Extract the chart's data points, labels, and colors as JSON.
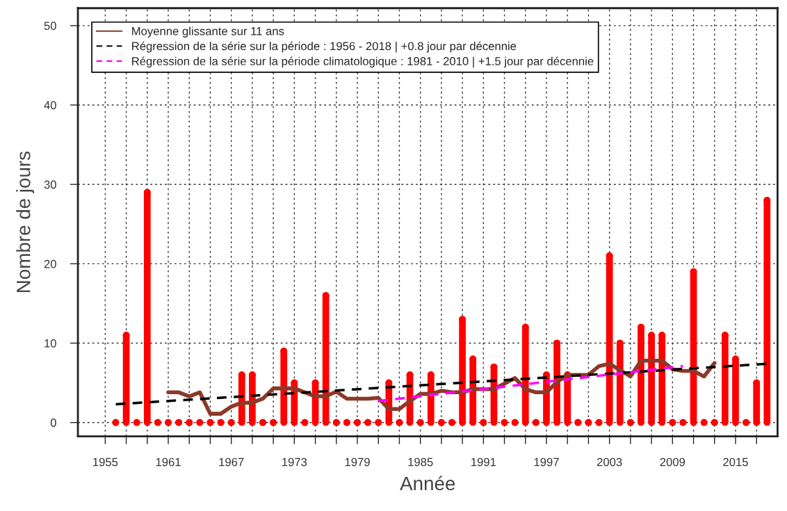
{
  "chart_data": {
    "type": "lollipop",
    "xlabel": "Année",
    "ylabel": "Nombre de jours",
    "xlim": [
      1952.4,
      2019.0
    ],
    "ylim": [
      -1.75,
      52.2
    ],
    "xticks": [
      1955,
      {
        "value": 1957,
        "label": null
      },
      {
        "value": 1959,
        "label": null
      },
      1961,
      {
        "value": 1963,
        "label": null
      },
      {
        "value": 1965,
        "label": null
      },
      1967,
      {
        "value": 1969,
        "label": null
      },
      {
        "value": 1971,
        "label": null
      },
      1973,
      {
        "value": 1975,
        "label": null
      },
      {
        "value": 1977,
        "label": null
      },
      1979,
      {
        "value": 1981,
        "label": null
      },
      {
        "value": 1983,
        "label": null
      },
      1985,
      {
        "value": 1987,
        "label": null
      },
      {
        "value": 1989,
        "label": null
      },
      1991,
      {
        "value": 1993,
        "label": null
      },
      {
        "value": 1995,
        "label": null
      },
      1997,
      {
        "value": 1999,
        "label": null
      },
      {
        "value": 2001,
        "label": null
      },
      2003,
      {
        "value": 2005,
        "label": null
      },
      {
        "value": 2007,
        "label": null
      },
      2009,
      {
        "value": 2011,
        "label": null
      },
      {
        "value": 2013,
        "label": null
      },
      2015,
      {
        "value": 2017,
        "label": null
      }
    ],
    "yticks": [
      0,
      10,
      20,
      30,
      40,
      50
    ],
    "grid": true,
    "legend": "top left",
    "series": [
      {
        "color": "#ff0000",
        "marker": "circle",
        "x": [
          1956,
          1957,
          1958,
          1959,
          1960,
          1961,
          1962,
          1963,
          1964,
          1965,
          1966,
          1967,
          1968,
          1969,
          1970,
          1971,
          1972,
          1973,
          1974,
          1975,
          1976,
          1977,
          1978,
          1979,
          1980,
          1981,
          1982,
          1983,
          1984,
          1985,
          1986,
          1987,
          1988,
          1989,
          1990,
          1991,
          1992,
          1993,
          1994,
          1995,
          1996,
          1997,
          1998,
          1999,
          2000,
          2001,
          2002,
          2003,
          2004,
          2005,
          2006,
          2007,
          2008,
          2009,
          2010,
          2011,
          2012,
          2013,
          2014,
          2015,
          2016,
          2017,
          2018
        ],
        "values": [
          0,
          11,
          0,
          29,
          0,
          0,
          0,
          0,
          0,
          0,
          0,
          0,
          6,
          6,
          0,
          0,
          9,
          5,
          0,
          5,
          16,
          0,
          0,
          0,
          0,
          0,
          5,
          0,
          6,
          0,
          6,
          0,
          0,
          13,
          8,
          0,
          7,
          0,
          0,
          12,
          0,
          6,
          10,
          6,
          0,
          0,
          0,
          21,
          10,
          0,
          12,
          11,
          11,
          0,
          0,
          19,
          0,
          0,
          11,
          8,
          0,
          5,
          28
        ]
      },
      {
        "type": "line",
        "name": "Moyenne glissante sur 11 ans",
        "color": "#8b3a2a",
        "line_style": "solid",
        "x": [
          1961,
          1962,
          1963,
          1964,
          1965,
          1966,
          1967,
          1968,
          1969,
          1970,
          1971,
          1972,
          1973,
          1974,
          1975,
          1976,
          1977,
          1978,
          1979,
          1980,
          1981,
          1982,
          1983,
          1984,
          1985,
          1986,
          1987,
          1988,
          1989,
          1990,
          1991,
          1992,
          1993,
          1994,
          1995,
          1996,
          1997,
          1998,
          1999,
          2000,
          2001,
          2002,
          2003,
          2004,
          2005,
          2006,
          2007,
          2008,
          2009,
          2010,
          2011,
          2012,
          2013
        ],
        "values": [
          3.8,
          3.8,
          3.3,
          3.8,
          1.1,
          1.1,
          2.0,
          2.5,
          2.5,
          3.0,
          4.3,
          4.3,
          4.3,
          3.8,
          3.3,
          3.3,
          3.9,
          3.0,
          3.0,
          3.0,
          3.1,
          1.7,
          1.7,
          2.7,
          3.6,
          3.6,
          4.0,
          3.8,
          3.8,
          4.2,
          4.2,
          4.2,
          4.9,
          5.6,
          4.2,
          3.8,
          3.8,
          5.1,
          6.0,
          6.0,
          6.0,
          7.1,
          7.4,
          6.6,
          5.8,
          7.8,
          7.8,
          7.8,
          6.7,
          6.5,
          6.5,
          5.8,
          7.5
        ]
      },
      {
        "type": "line",
        "name": "Régression de la série sur la période : 1956 - 2018 | +0.8 jour par décennie",
        "color": "#000000",
        "line_style": "dashed",
        "x": [
          1956,
          2018
        ],
        "values": [
          2.3,
          7.4
        ]
      },
      {
        "type": "line",
        "name": "Régression de la série sur la période climatologique : 1981 - 2010 | +1.5 jour par décennie",
        "color": "#ff00ff",
        "line_style": "dashed",
        "x": [
          1981,
          2010
        ],
        "values": [
          2.7,
          7.1
        ]
      }
    ]
  }
}
